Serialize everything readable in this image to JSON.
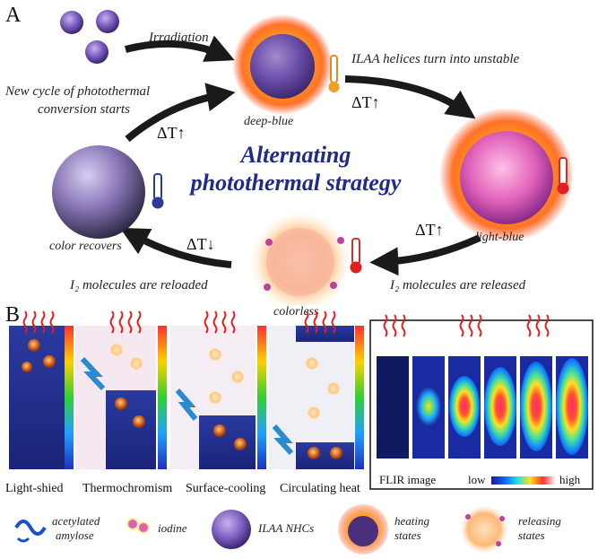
{
  "panels": {
    "a": "A",
    "b": "B"
  },
  "panel_a": {
    "labels": {
      "irradiation": "Irradiation",
      "unstable": "ILAA helices turn into unstable",
      "new_cycle_line1": "New cycle of photothermal",
      "new_cycle_line2": "conversion starts",
      "deep_blue": "deep-blue",
      "light_blue": "light-blue",
      "colorless": "colorless",
      "color_recovers": "color recovers",
      "reloaded": "I₂ molecules are reloaded",
      "released": "I₂ molecules are released",
      "dt_up_1": "ΔT↑",
      "dt_up_2": "ΔT↑",
      "dt_up_3": "ΔT↑",
      "dt_down": "ΔT↓"
    },
    "title_line1": "Alternating",
    "title_line2": "photothermal strategy"
  },
  "panel_b": {
    "captions": [
      "Light-shied",
      "Thermochromism",
      "Surface-cooling",
      "Circulating heat"
    ],
    "flir": {
      "label": "FLIR image",
      "low": "low",
      "high": "high"
    }
  },
  "legend": {
    "acetylated_line1": "acetylated",
    "acetylated_line2": "amylose",
    "iodine": "iodine",
    "nhcs": "ILAA NHCs",
    "heating_line1": "heating",
    "heating_line2": "states",
    "releasing_line1": "releasing",
    "releasing_line2": "states"
  },
  "colors": {
    "title": "#1f2a8a",
    "arrow": "#1a1a1a",
    "nanoparticle": "#6a4fa3",
    "fire": "#ff6a00"
  }
}
